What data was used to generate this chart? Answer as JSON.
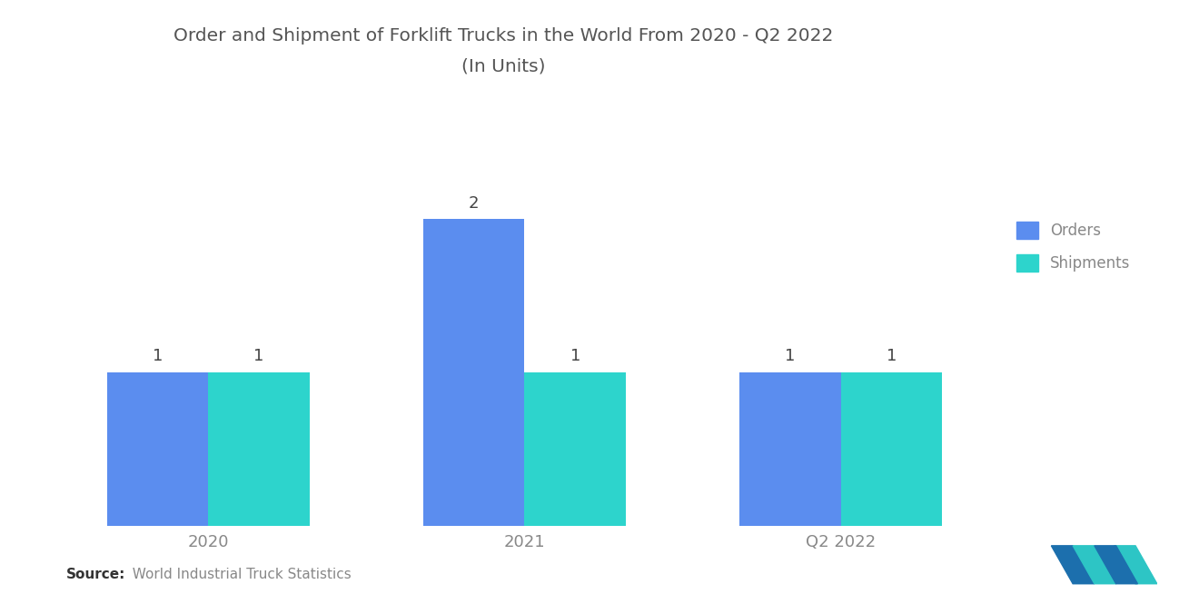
{
  "title_line1": "Order and Shipment of Forklift Trucks in the World From 2020 - Q2 2022",
  "title_line2": "(In Units)",
  "categories": [
    "2020",
    "2021",
    "Q2 2022"
  ],
  "orders": [
    1,
    2,
    1
  ],
  "shipments": [
    1,
    1,
    1
  ],
  "orders_color": "#5B8DEF",
  "shipments_color": "#2DD4CC",
  "bar_width": 0.32,
  "legend_labels": [
    "Orders",
    "Shipments"
  ],
  "source_bold": "Source:",
  "source_rest": "  World Industrial Truck Statistics",
  "bg_color": "#FFFFFF",
  "title_color": "#555555",
  "label_color": "#444444",
  "tick_color": "#888888",
  "ylim": [
    0,
    2.8
  ],
  "title_fontsize": 14.5,
  "source_fontsize": 11,
  "annotation_fontsize": 13,
  "legend_fontsize": 12,
  "xtick_fontsize": 13,
  "logo_color_dark": "#1C6FAD",
  "logo_color_light": "#2DC5C5"
}
